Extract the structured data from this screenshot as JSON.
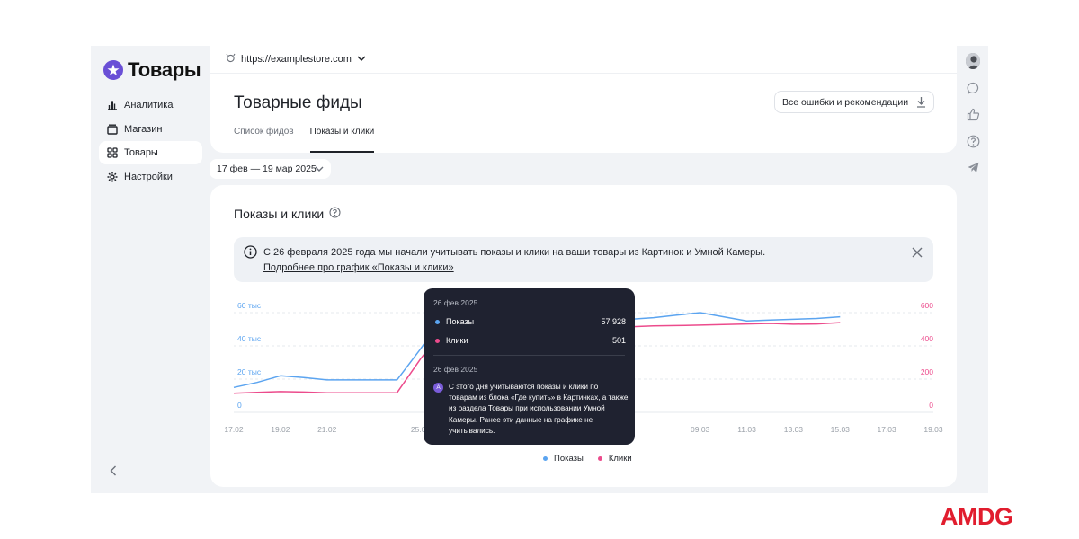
{
  "app": {
    "title": "Товары",
    "accent": "#6a4fd6"
  },
  "sidebar": {
    "items": [
      {
        "label": "Аналитика",
        "icon": "bar-chart-icon"
      },
      {
        "label": "Магазин",
        "icon": "store-icon"
      },
      {
        "label": "Товары",
        "icon": "grid-icon",
        "active": true
      },
      {
        "label": "Настройки",
        "icon": "gear-icon"
      }
    ],
    "collapse_icon": "chevron-left-icon"
  },
  "header": {
    "site_url": "https://examplestore.com",
    "page_title": "Товарные фиды",
    "errors_button": "Все ошибки и рекомендации",
    "tabs": [
      {
        "label": "Список фидов",
        "active": false
      },
      {
        "label": "Показы и клики",
        "active": true
      }
    ]
  },
  "date_range": "17 фев — 19 мар 2025",
  "section": {
    "title": "Показы и клики",
    "banner_text": "С 26 февраля 2025 года мы начали учитывать показы и клики на ваши товары из Картинок и Умной Камеры.",
    "banner_link": "Подробнее про график «Показы и клики»"
  },
  "chart_data": {
    "type": "line",
    "x": [
      "17.02",
      "18.02",
      "19.02",
      "20.02",
      "21.02",
      "22.02",
      "23.02",
      "24.02",
      "25.02",
      "26.02",
      "27.02",
      "28.02",
      "01.03",
      "02.03",
      "03.03",
      "04.03",
      "05.03",
      "06.03",
      "07.03",
      "08.03",
      "09.03",
      "10.03",
      "11.03",
      "12.03",
      "13.03",
      "14.03",
      "15.03"
    ],
    "x_tick_labels": [
      "17.02",
      "19.02",
      "21.02",
      "25.02",
      "09.03",
      "11.03",
      "13.03",
      "15.03",
      "17.03",
      "19.03"
    ],
    "x_tick_dates": [
      "17.02",
      "19.02",
      "21.02",
      "25.02",
      "09.03",
      "11.03",
      "13.03",
      "15.03",
      "17.03",
      "19.03"
    ],
    "x_domain": [
      "17.02",
      "19.03"
    ],
    "y_left": {
      "ticks": [
        "0",
        "20 тыс",
        "40 тыс",
        "60 тыс"
      ],
      "min": 0,
      "max": 60000
    },
    "y_right": {
      "ticks": [
        "0",
        "200",
        "400",
        "600"
      ],
      "min": 0,
      "max": 600
    },
    "series": [
      {
        "name": "Показы",
        "axis": "left",
        "color": "#5ba4f0",
        "values": [
          15000,
          18000,
          22000,
          21000,
          19500,
          19500,
          19500,
          19500,
          38000,
          57928,
          54000,
          53000,
          52000,
          53000,
          54000,
          54500,
          55000,
          56000,
          57000,
          58500,
          60000,
          57500,
          55000,
          55500,
          56000,
          56500,
          57500
        ]
      },
      {
        "name": "Клики",
        "axis": "right",
        "color": "#ec4b8c",
        "values": [
          115,
          120,
          125,
          122,
          118,
          118,
          118,
          118,
          320,
          501,
          470,
          480,
          490,
          500,
          505,
          510,
          512,
          515,
          520,
          522,
          525,
          528,
          532,
          535,
          530,
          532,
          540
        ]
      }
    ],
    "annotation": {
      "x": "26.02",
      "label": "A"
    },
    "legend": [
      "Показы",
      "Клики"
    ],
    "legend_position": "bottom"
  },
  "tooltip": {
    "date": "26 фев 2025",
    "rows": [
      {
        "label": "Показы",
        "value": "57 928",
        "color": "#5ba4f0"
      },
      {
        "label": "Клики",
        "value": "501",
        "color": "#ec4b8c"
      }
    ],
    "note_date": "26 фев 2025",
    "note_badge": "A",
    "note": "С этого дня учитываются показы и клики по товарам из блока «Где купить» в Картинках, а также из раздела Товары при использовании Умной Камеры. Ранее эти данные на графике не учитывались."
  },
  "watermark": "AMDG"
}
